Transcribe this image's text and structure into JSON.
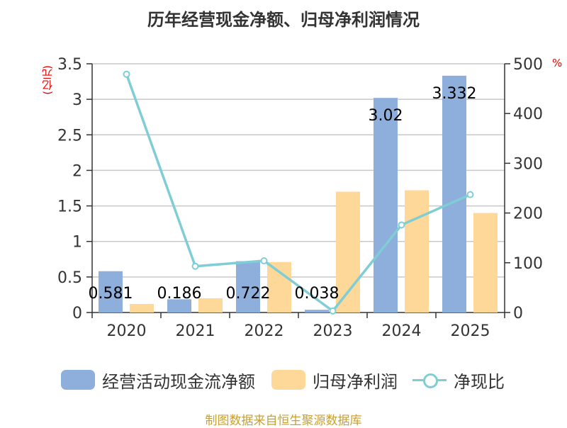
{
  "title": "历年经营现金净额、归母净利润情况",
  "unit_left": "(亿元)",
  "unit_right": "%",
  "source": "制图数据来自恒生聚源数据库",
  "colors": {
    "cash": "#8eaedb",
    "profit": "#fdd898",
    "ratio": "#7fcdd5",
    "accent": "#e60000",
    "source": "#c8a032"
  },
  "chart_data": {
    "type": "bar",
    "title": "历年经营现金净额、归母净利润情况",
    "categories": [
      "2020",
      "2021",
      "2022",
      "2023",
      "2024",
      "2025"
    ],
    "series": [
      {
        "name": "经营活动现金流净额",
        "type": "bar",
        "axis": "left",
        "values": [
          0.581,
          0.186,
          0.722,
          0.038,
          3.02,
          3.332
        ],
        "labels": [
          "0.581",
          "0.186",
          "0.722",
          "0.038",
          "3.02",
          "3.332"
        ]
      },
      {
        "name": "归母净利润",
        "type": "bar",
        "axis": "left",
        "values": [
          0.12,
          0.2,
          0.71,
          1.7,
          1.72,
          1.4
        ]
      },
      {
        "name": "净现比",
        "type": "line",
        "axis": "right",
        "values": [
          479,
          93,
          104,
          3,
          176,
          237
        ]
      }
    ],
    "y_left": {
      "label": "(亿元)",
      "min": 0,
      "max": 3.5,
      "ticks": [
        "0",
        "0.5",
        "1",
        "1.5",
        "2",
        "2.5",
        "3",
        "3.5"
      ]
    },
    "y_right": {
      "label": "%",
      "min": 0,
      "max": 500,
      "ticks": [
        "0",
        "100",
        "200",
        "300",
        "400",
        "500"
      ]
    },
    "grid": true,
    "legend": "bottom"
  }
}
